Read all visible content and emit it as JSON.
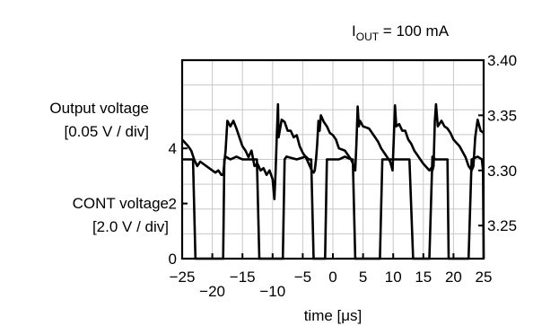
{
  "chart_data": {
    "type": "line",
    "title": "",
    "condition": {
      "main": "I",
      "sub": "OUT",
      "rest": " = 100 mA"
    },
    "xlabel": "time [μs]",
    "xlim": [
      -25,
      25
    ],
    "x_ticks": [
      -25,
      -20,
      -15,
      -10,
      -5,
      0,
      5,
      10,
      15,
      20,
      25
    ],
    "x_tick_labels": [
      "−25",
      "−20",
      "−15",
      "−10",
      "−5",
      "0",
      "5",
      "10",
      "15",
      "20",
      "25"
    ],
    "grid": true,
    "series": [
      {
        "name": "Output voltage",
        "axis_label_lines": [
          "Output voltage",
          "[0.05 V / div]"
        ],
        "unit": "V",
        "ylim": [
          3.22,
          3.4
        ],
        "y_ticks": [
          3.25,
          3.3,
          3.35,
          3.4
        ],
        "y_tick_labels": [
          "3.25",
          "3.30",
          "3.35",
          "3.40"
        ],
        "x": [
          -25,
          -24,
          -23.5,
          -23,
          -22.5,
          -22,
          -20.5,
          -19.5,
          -19,
          -18.5,
          -18.2,
          -17.8,
          -17.5,
          -17,
          -16.5,
          -16,
          -15.5,
          -15,
          -14.5,
          -14,
          -13.5,
          -13,
          -12.5,
          -12,
          -11.5,
          -11,
          -10.5,
          -10,
          -9.7,
          -9.5,
          -9.3,
          -9.1,
          -9,
          -8.5,
          -8,
          -7.5,
          -7,
          -6.5,
          -6,
          -5.5,
          -5,
          -4.5,
          -4,
          -3.5,
          -3.2,
          -3,
          -2.8,
          -2.6,
          -2.4,
          -2.2,
          -2,
          -1.5,
          -1,
          -0.5,
          0,
          0.5,
          1,
          2,
          3,
          3.5,
          3.7,
          3.9,
          4.1,
          4.3,
          4.5,
          5,
          6,
          7,
          7.5,
          8,
          9,
          9.5,
          9.7,
          9.9,
          10.1,
          10.3,
          10.5,
          11,
          11.5,
          12,
          12.5,
          13,
          13.5,
          14,
          14.5,
          15,
          16,
          16.3,
          16.5,
          16.7,
          16.9,
          17.1,
          17.4,
          18,
          18.5,
          19,
          19.5,
          20,
          21,
          22,
          22.5,
          23,
          23.3,
          23.6,
          24,
          24.5,
          25
        ],
        "y": [
          3.328,
          3.322,
          3.318,
          3.31,
          3.304,
          3.308,
          3.302,
          3.298,
          3.3,
          3.296,
          3.296,
          3.318,
          3.345,
          3.34,
          3.345,
          3.338,
          3.33,
          3.322,
          3.318,
          3.312,
          3.318,
          3.304,
          3.306,
          3.3,
          3.302,
          3.296,
          3.3,
          3.292,
          3.274,
          3.3,
          3.332,
          3.36,
          3.33,
          3.346,
          3.344,
          3.336,
          3.336,
          3.33,
          3.332,
          3.322,
          3.316,
          3.312,
          3.306,
          3.3,
          3.298,
          3.3,
          3.31,
          3.324,
          3.345,
          3.336,
          3.35,
          3.344,
          3.34,
          3.334,
          3.332,
          3.328,
          3.32,
          3.318,
          3.31,
          3.304,
          3.3,
          3.324,
          3.358,
          3.34,
          3.345,
          3.34,
          3.338,
          3.33,
          3.326,
          3.32,
          3.312,
          3.308,
          3.304,
          3.3,
          3.33,
          3.359,
          3.34,
          3.342,
          3.336,
          3.336,
          3.328,
          3.324,
          3.318,
          3.314,
          3.31,
          3.306,
          3.3,
          3.302,
          3.3,
          3.304,
          3.345,
          3.36,
          3.34,
          3.345,
          3.34,
          3.338,
          3.334,
          3.328,
          3.322,
          3.312,
          3.304,
          3.3,
          3.304,
          3.33,
          3.346,
          3.336,
          3.334
        ]
      },
      {
        "name": "CONT voltage",
        "axis_label_lines": [
          "CONT voltage",
          "[2.0 V / div]"
        ],
        "unit": "V",
        "ylim": [
          0,
          7.2
        ],
        "y_ticks": [
          0,
          2,
          4
        ],
        "y_tick_labels": [
          "0",
          "2",
          "4"
        ],
        "x": [
          -25,
          -23.5,
          -23.2,
          -22.8,
          -20,
          -19.8,
          -18.2,
          -18,
          -17.8,
          -17,
          -16,
          -15,
          -14,
          -13,
          -12.6,
          -12.2,
          -10,
          -9.9,
          -8.3,
          -8,
          -7.7,
          -6,
          -4.5,
          -4,
          -3.6,
          -3.2,
          -1.3,
          -1.0,
          1,
          2,
          3,
          3.3,
          3.7,
          6,
          6.2,
          7.8,
          8.2,
          10,
          10.5,
          11,
          12.7,
          13.3,
          16,
          16.5,
          17,
          18.5,
          19,
          19.2,
          22.5,
          23,
          24,
          24.7,
          24.9,
          25
        ],
        "y": [
          3.6,
          3.6,
          3.6,
          0,
          0,
          0,
          0,
          3.6,
          3.7,
          3.6,
          3.7,
          3.6,
          3.6,
          3.6,
          3.6,
          0,
          0,
          0,
          0,
          3.6,
          3.7,
          3.6,
          3.7,
          3.6,
          3.6,
          0,
          0,
          3.6,
          3.6,
          3.7,
          3.6,
          3.6,
          0,
          0,
          0,
          0,
          3.6,
          3.6,
          3.6,
          3.6,
          3.6,
          0,
          0,
          3.7,
          3.6,
          3.6,
          3.6,
          0,
          0,
          3.6,
          3.7,
          3.6,
          3.2,
          0
        ]
      }
    ]
  }
}
